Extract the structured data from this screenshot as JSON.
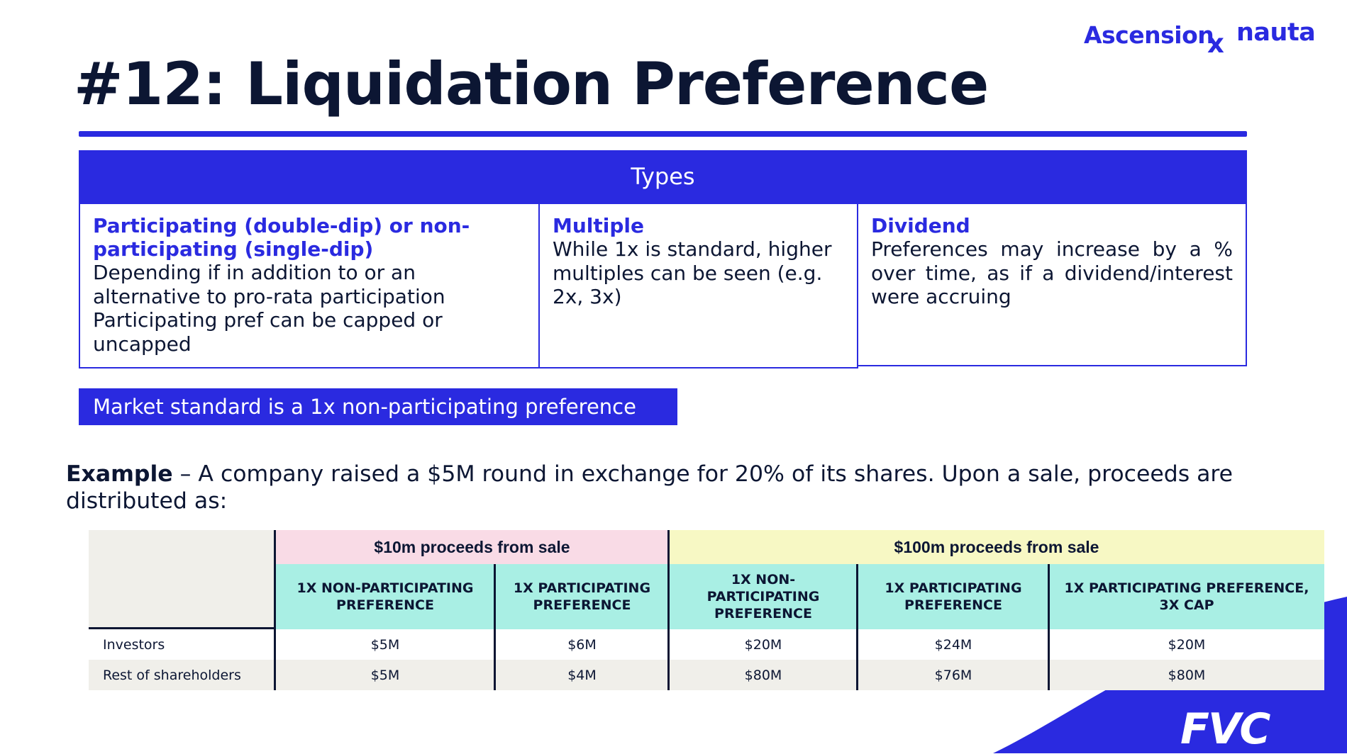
{
  "brand": {
    "ascension": "Ascension",
    "x": "x",
    "nauta": "nauta",
    "fvc": "FVC",
    "accent_color": "#2a2ae0"
  },
  "title": "#12: Liquidation Preference",
  "types": {
    "header": "Types",
    "cells": [
      {
        "heading": "Participating (double-dip) or non-participating (single-dip)",
        "body": [
          "Depending if in addition to or an alternative to pro-rata participation",
          "Participating pref can be capped or uncapped"
        ]
      },
      {
        "heading": "Multiple",
        "body": [
          "While 1x is standard, higher multiples can be seen (e.g. 2x, 3x)"
        ]
      },
      {
        "heading": "Dividend",
        "body": [
          "Preferences may increase by a % over time, as if a dividend/interest were accruing"
        ]
      }
    ]
  },
  "market_standard": "Market standard is a 1x non-participating preference",
  "example": {
    "label": "Example",
    "text": " – A company raised a $5M round in exchange for 20% of its shares. Upon a sale, proceeds are distributed as:"
  },
  "table": {
    "groups": [
      "$10m proceeds from sale",
      "$100m proceeds from sale"
    ],
    "columns": [
      "1X NON-PARTICIPATING PREFERENCE",
      "1X PARTICIPATING PREFERENCE",
      "1X NON-PARTICIPATING PREFERENCE",
      "1X PARTICIPATING PREFERENCE",
      "1X PARTICIPATING PREFERENCE, 3X CAP"
    ],
    "rows": [
      {
        "label": "Investors",
        "values": [
          "$5M",
          "$6M",
          "$20M",
          "$24M",
          "$20M"
        ]
      },
      {
        "label": "Rest of shareholders",
        "values": [
          "$5M",
          "$4M",
          "$80M",
          "$76M",
          "$80M"
        ]
      }
    ]
  }
}
